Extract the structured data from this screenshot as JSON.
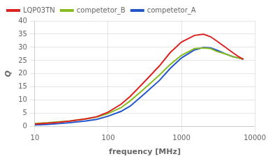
{
  "chart_data": {
    "type": "line",
    "xlabel": "frequency [MHz]",
    "ylabel": "Q",
    "x": [
      10,
      15,
      20,
      30,
      50,
      70,
      100,
      150,
      200,
      300,
      500,
      700,
      1000,
      1500,
      2000,
      2500,
      3000,
      4000,
      5000,
      6000,
      7000
    ],
    "series": [
      {
        "name": "LQP03TN",
        "color": "#dd2222",
        "values": [
          1.0,
          1.3,
          1.6,
          2.1,
          3.0,
          3.8,
          5.5,
          8.5,
          11.5,
          16.5,
          23.0,
          28.0,
          32.0,
          34.5,
          35.0,
          34.0,
          32.5,
          30.0,
          28.0,
          26.5,
          25.5
        ]
      },
      {
        "name": "competetor_B",
        "color": "#88bb22",
        "values": [
          1.2,
          1.5,
          1.8,
          2.2,
          3.0,
          3.6,
          5.0,
          7.2,
          9.8,
          14.0,
          19.5,
          23.5,
          27.0,
          29.5,
          29.8,
          29.5,
          28.5,
          27.5,
          26.5,
          26.0,
          25.5
        ]
      },
      {
        "name": "competetor_A",
        "color": "#2255cc",
        "values": [
          0.7,
          0.9,
          1.1,
          1.5,
          2.2,
          2.8,
          4.0,
          5.8,
          7.8,
          12.0,
          17.5,
          22.0,
          26.0,
          29.0,
          30.0,
          29.8,
          29.0,
          27.5,
          26.5,
          26.0,
          25.5
        ]
      }
    ],
    "log": "x",
    "xlim": [
      10,
      10000
    ],
    "xticks": [
      10,
      100,
      1000,
      10000
    ],
    "ylim": [
      0,
      40
    ],
    "yticks": [
      0,
      5,
      10,
      15,
      20,
      25,
      30,
      35,
      40
    ],
    "grid": true,
    "legend": "upper left"
  }
}
